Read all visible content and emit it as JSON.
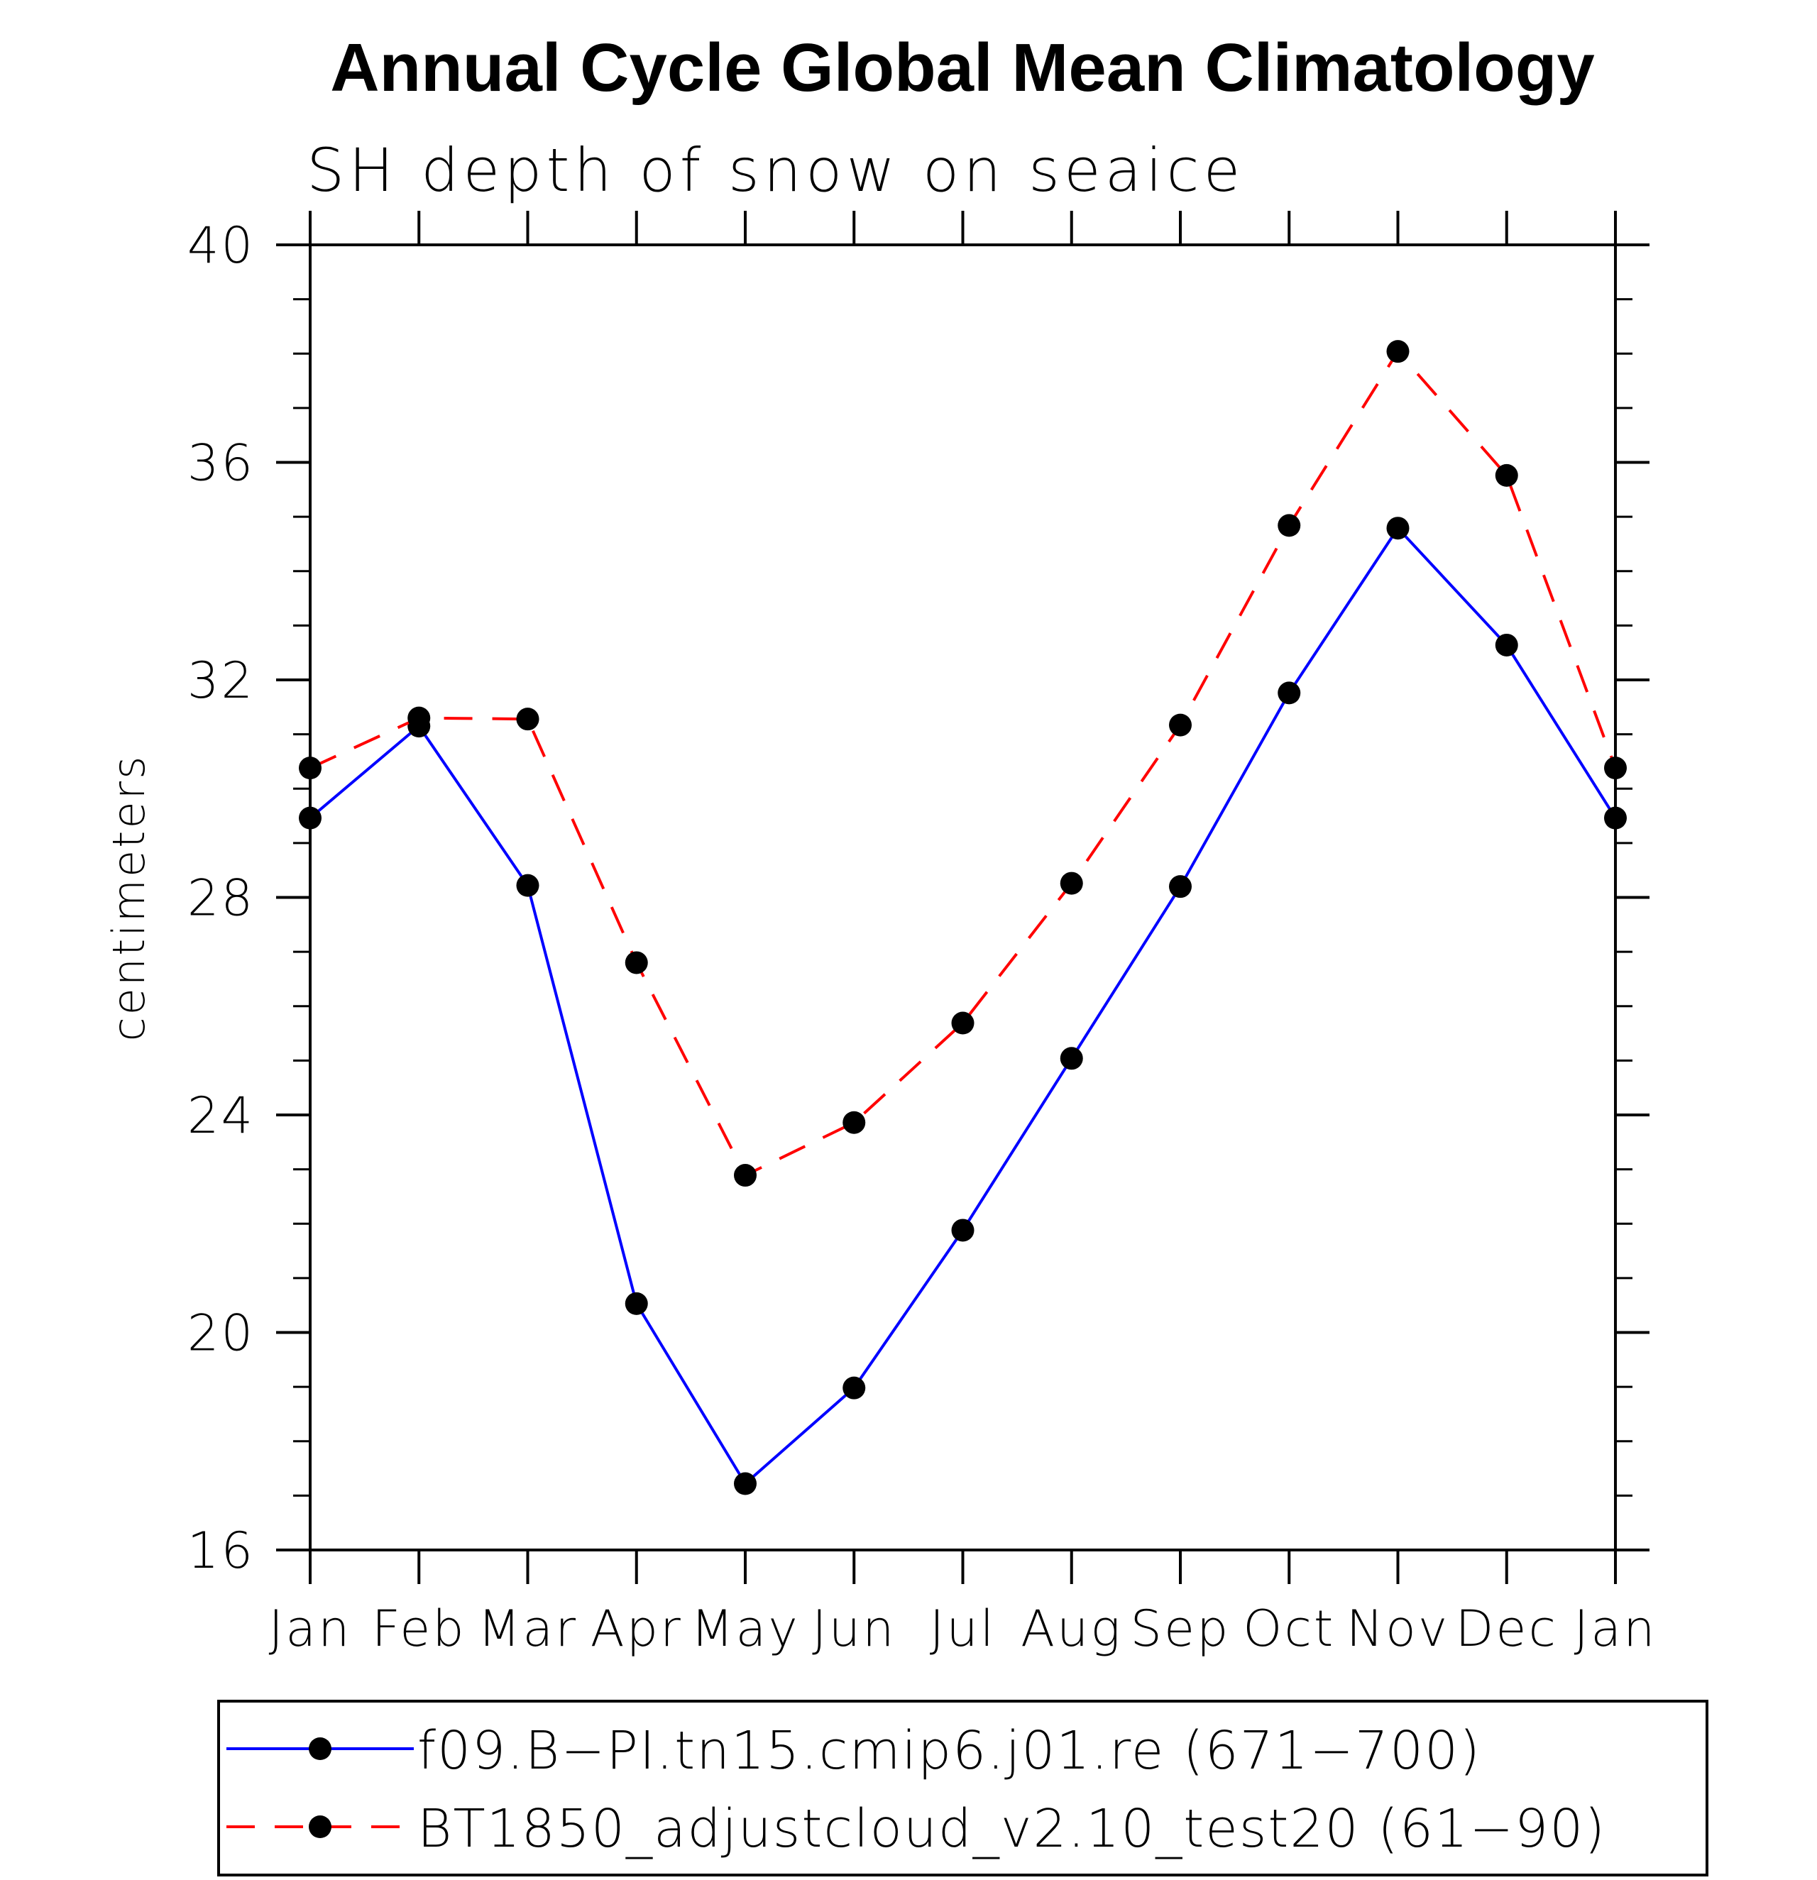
{
  "chart_data": {
    "type": "line",
    "title": "Annual Cycle Global Mean Climatology",
    "subtitle": "SH depth of snow on seaice",
    "xlabel": "",
    "ylabel": "centimeters",
    "categories": [
      "Jan",
      "Feb",
      "Mar",
      "Apr",
      "May",
      "Jun",
      "Jul",
      "Aug",
      "Sep",
      "Oct",
      "Nov",
      "Dec",
      "Jan"
    ],
    "ylim": [
      16,
      40
    ],
    "yticks": [
      16,
      20,
      24,
      28,
      32,
      36,
      40
    ],
    "ytick_labels": [
      "16",
      "20",
      "24",
      "28",
      "32",
      "36",
      "40"
    ],
    "y_minor_step": 1,
    "grid": false,
    "legend_position": "bottom",
    "series": [
      {
        "name": "f09.B−PI.tn15.cmip6.j01.re (671−700)",
        "color": "#0000ff",
        "line_style": "solid",
        "marker": "filled-circle",
        "marker_color": "#000000",
        "values": [
          29.46,
          31.15,
          28.22,
          20.53,
          17.22,
          18.98,
          21.88,
          25.04,
          28.2,
          31.76,
          34.79,
          32.64,
          29.46
        ]
      },
      {
        "name": "BT1850_adjustcloud_v2.10_test20 (61−90)",
        "color": "#ff0000",
        "line_style": "dashed",
        "marker": "filled-circle",
        "marker_color": "#000000",
        "values": [
          30.38,
          31.3,
          31.28,
          26.8,
          22.89,
          23.86,
          25.69,
          28.26,
          31.17,
          34.84,
          38.04,
          35.76,
          30.38
        ]
      }
    ]
  }
}
